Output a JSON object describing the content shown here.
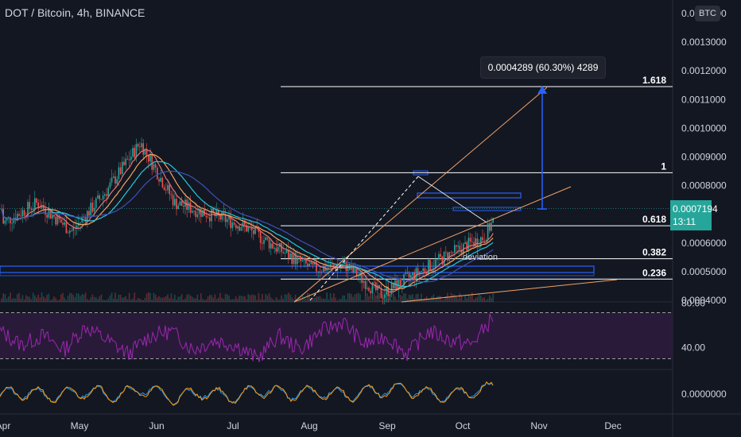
{
  "header": {
    "symbol": "DOT / Bitcoin",
    "interval": "4h",
    "exchange": "BINANCE",
    "currency_badge": "BTC"
  },
  "price_axis": {
    "labels": [
      "0.0014000",
      "0.0013000",
      "0.0012000",
      "0.0011000",
      "0.0010000",
      "0.0009000",
      "0.0008000",
      "0.0006000",
      "0.0005000",
      "0.0004000"
    ],
    "current_price": "0.0007194",
    "countdown": "13:11"
  },
  "rsi_axis": {
    "labels": [
      "80.00",
      "40.00"
    ]
  },
  "osc_axis": {
    "labels": [
      "0.0000000"
    ]
  },
  "time_axis": {
    "labels": [
      "Apr",
      "May",
      "Jun",
      "Jul",
      "Aug",
      "Sep",
      "Oct",
      "Nov",
      "Dec"
    ]
  },
  "annotations": {
    "measure": "0.0004289 (60.30%) 4289",
    "deviation": "deviation"
  },
  "colors": {
    "background": "#131722",
    "up": "#26a69a",
    "down": "#ef5350",
    "fib_line": "#ffffff",
    "trend_line": "#f0a268",
    "zone_line": "#2962ff",
    "rsi_line": "#9c27b0",
    "rsi_band": "#2a1a3a"
  },
  "chart_data": [
    {
      "type": "candlestick",
      "title": "DOT / Bitcoin, 4h, BINANCE",
      "ylabel": "BTC",
      "x": [
        "Apr",
        "May",
        "Jun",
        "Jul",
        "Aug",
        "Sep",
        "Oct",
        "Nov",
        "Dec"
      ],
      "ylim": [
        0.0004,
        0.0014
      ],
      "fib_levels": [
        {
          "label": "1.618",
          "price": 0.001145
        },
        {
          "label": "1",
          "price": 0.000845
        },
        {
          "label": "0.618",
          "price": 0.00066
        },
        {
          "label": "0.382",
          "price": 0.000545
        },
        {
          "label": "0.236",
          "price": 0.000474
        }
      ],
      "close_series": [
        {
          "x": "Apr",
          "y": 0.00067
        },
        {
          "x": "Apr",
          "y": 0.00074
        },
        {
          "x": "May",
          "y": 0.00064
        },
        {
          "x": "May",
          "y": 0.00078
        },
        {
          "x": "May",
          "y": 0.00095
        },
        {
          "x": "May",
          "y": 0.00074
        },
        {
          "x": "Jun",
          "y": 0.0007
        },
        {
          "x": "Jun",
          "y": 0.00066
        },
        {
          "x": "Jun",
          "y": 0.00058
        },
        {
          "x": "Jul",
          "y": 0.00051
        },
        {
          "x": "Jul",
          "y": 0.00052
        },
        {
          "x": "Aug",
          "y": 0.00042
        },
        {
          "x": "Aug",
          "y": 0.00049
        },
        {
          "x": "Aug",
          "y": 0.00056
        },
        {
          "x": "Sep",
          "y": 0.00062
        },
        {
          "x": "Sep",
          "y": 0.00082
        },
        {
          "x": "Sep",
          "y": 0.0007
        },
        {
          "x": "Oct",
          "y": 0.00066
        },
        {
          "x": "Oct",
          "y": 0.00062
        },
        {
          "x": "Oct",
          "y": 0.000719
        }
      ],
      "current_price": 0.0007194
    },
    {
      "type": "line",
      "title": "RSI",
      "ylim": [
        20,
        90
      ],
      "bands": [
        80,
        30
      ],
      "values": [
        60,
        45,
        55,
        40,
        65,
        50,
        35,
        55,
        60,
        40,
        50,
        45,
        30,
        55,
        40,
        60,
        70,
        45,
        55,
        35,
        60,
        50,
        45,
        75
      ]
    },
    {
      "type": "line",
      "title": "Oscillator",
      "values": [
        0.0,
        0.1,
        -0.2,
        0.3,
        -0.1,
        0.5,
        -0.4,
        0.2,
        -0.3,
        0.4,
        0.0,
        0.2,
        -0.1,
        0.3,
        0.5,
        -0.2,
        0.1,
        0.6
      ]
    }
  ]
}
